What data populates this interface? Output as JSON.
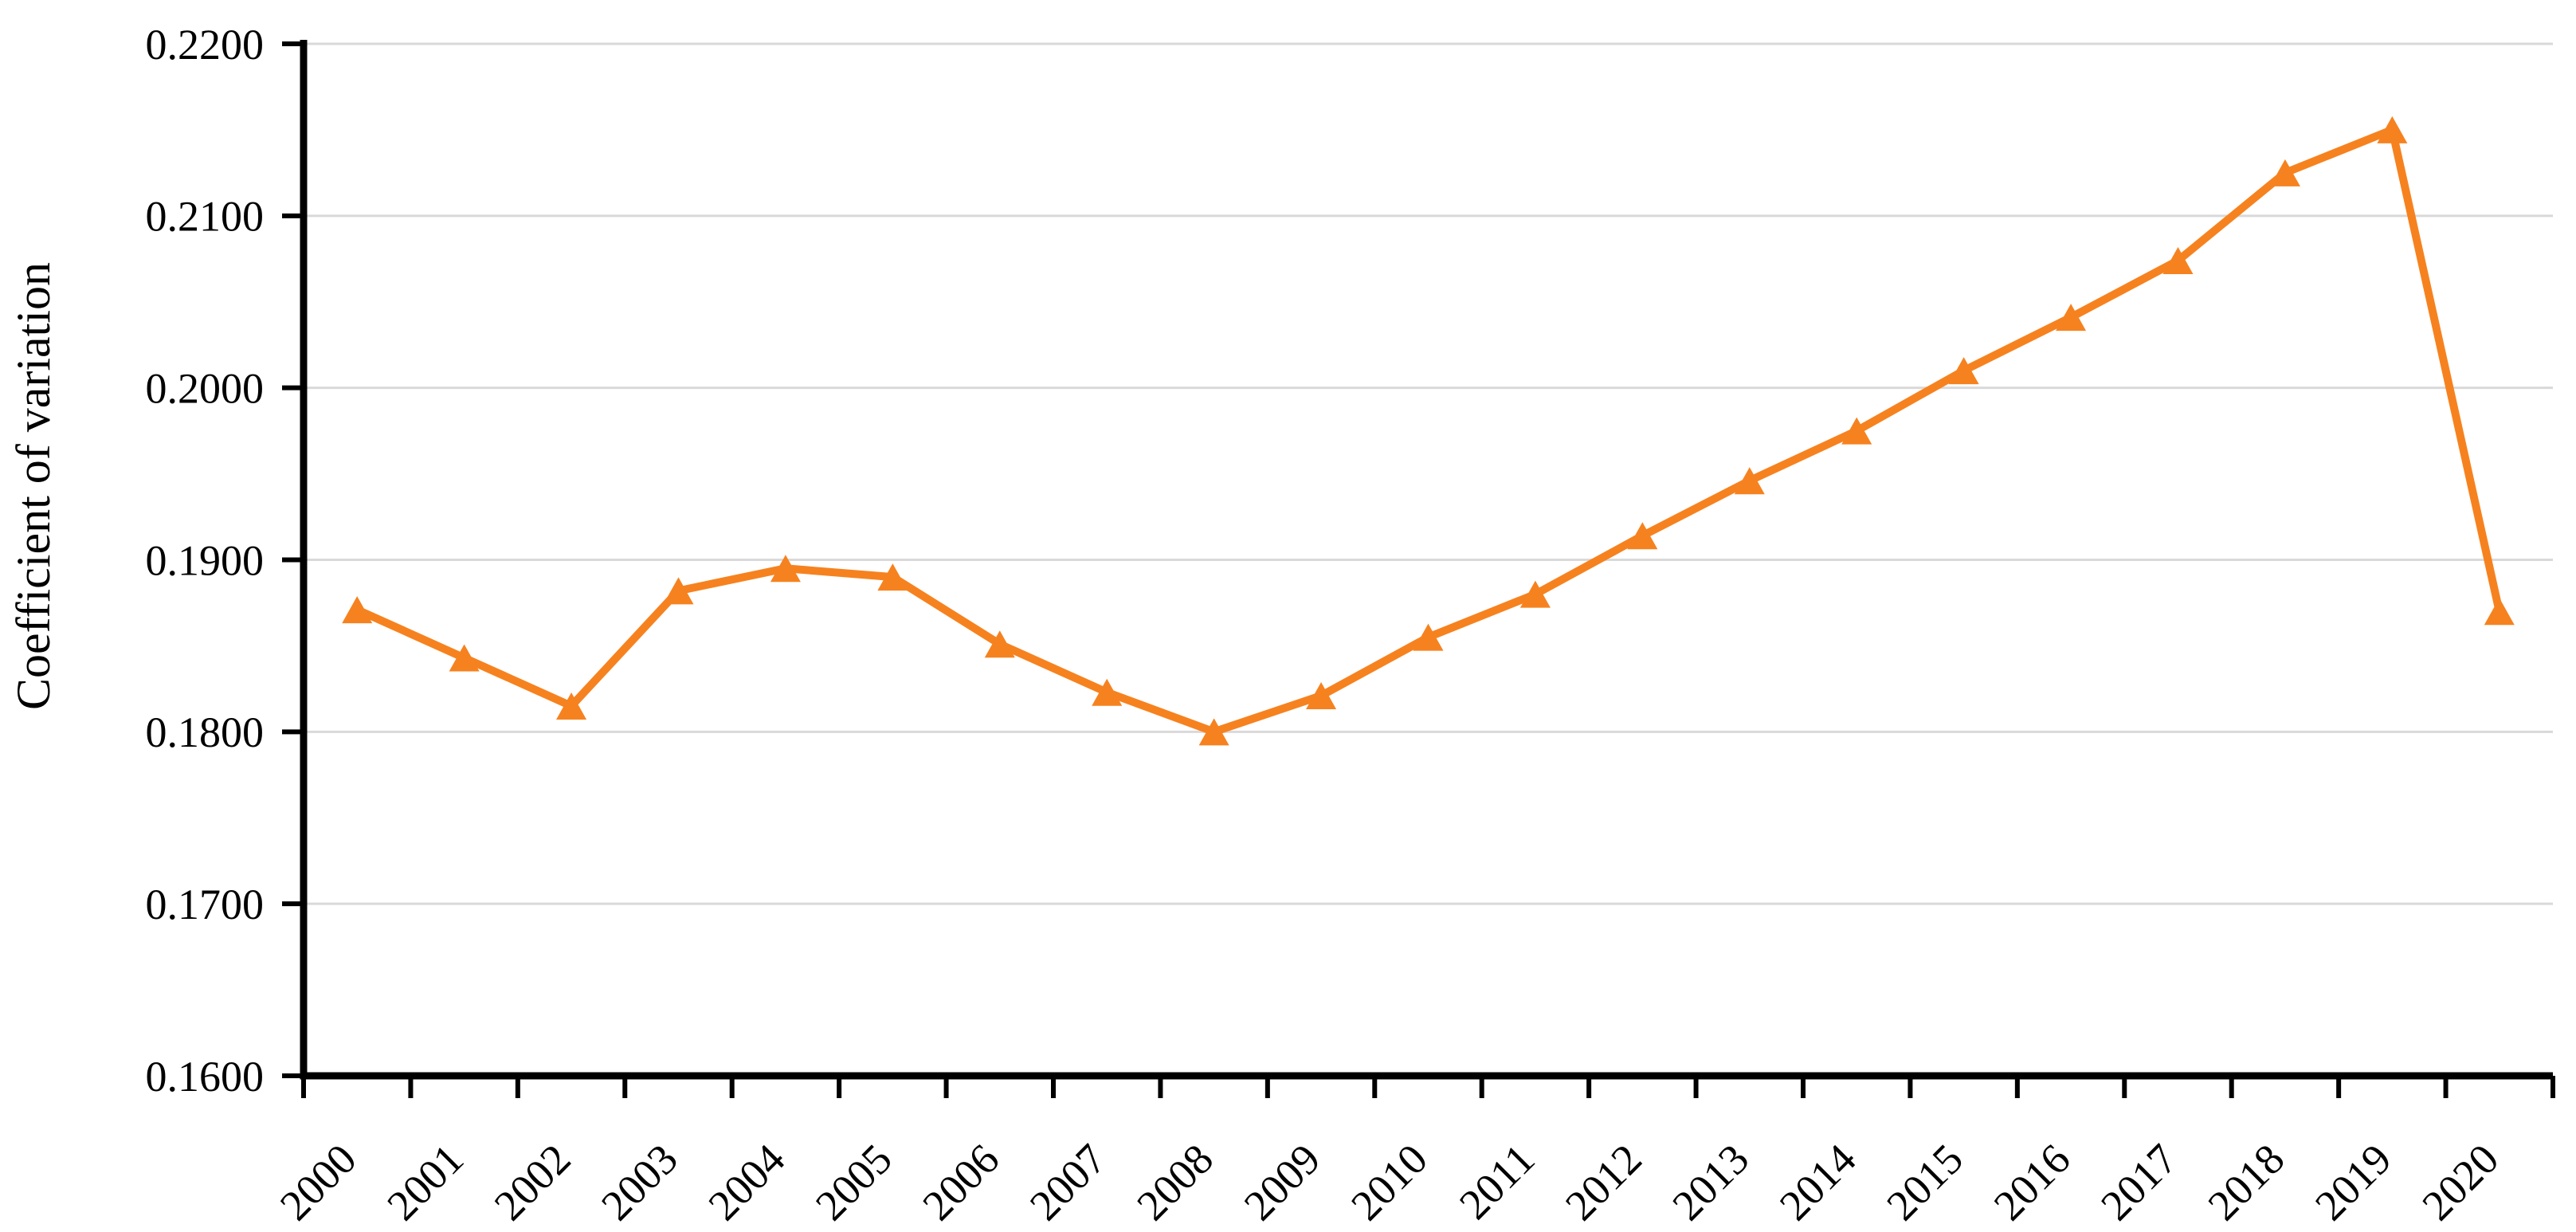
{
  "chart_data": {
    "type": "line",
    "title": "",
    "xlabel": "",
    "ylabel": "Coefficient of variation",
    "categories": [
      "2000",
      "2001",
      "2002",
      "2003",
      "2004",
      "2005",
      "2006",
      "2007",
      "2008",
      "2009",
      "2010",
      "2011",
      "2012",
      "2013",
      "2014",
      "2015",
      "2016",
      "2017",
      "2018",
      "2019",
      "2020"
    ],
    "series": [
      {
        "name": "Coefficient of variation",
        "values": [
          0.1871,
          0.1843,
          0.1815,
          0.1882,
          0.1895,
          0.189,
          0.1851,
          0.1823,
          0.18,
          0.1821,
          0.1855,
          0.188,
          0.1914,
          0.1946,
          0.1975,
          0.201,
          0.2041,
          0.2074,
          0.2125,
          0.215,
          0.187
        ]
      }
    ],
    "ylim": [
      0.16,
      0.22
    ],
    "y_ticks": [
      0.16,
      0.17,
      0.18,
      0.19,
      0.2,
      0.21,
      0.22
    ],
    "y_tick_labels": [
      "0.1600",
      "0.1700",
      "0.1800",
      "0.1900",
      "0.2000",
      "0.2100",
      "0.2200"
    ],
    "x_tick_rotation_deg": -45,
    "grid": "horizontal-major-only",
    "legend_position": "none",
    "marker": "triangle-up",
    "colors": {
      "line": "#F6821F",
      "marker": "#F6821F",
      "gridline": "#D9D9D9",
      "axis": "#000000",
      "background": "#FFFFFF"
    }
  }
}
